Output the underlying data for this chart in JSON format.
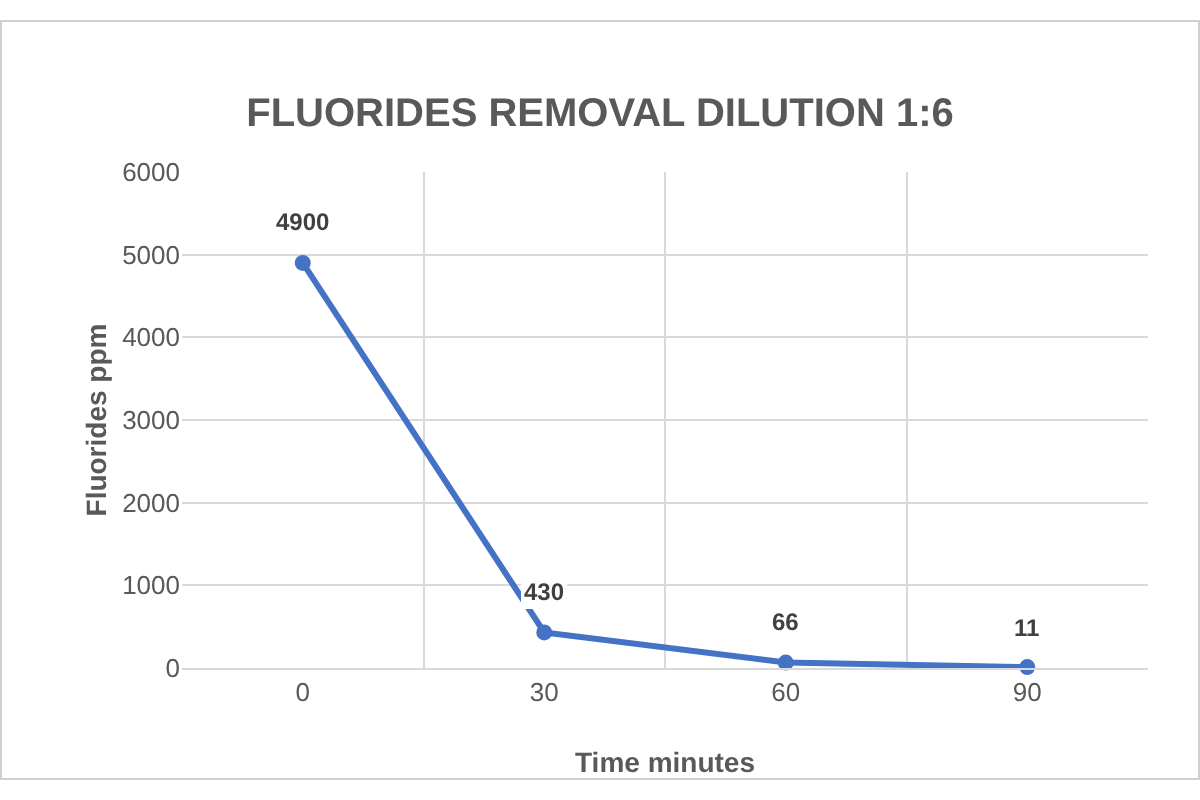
{
  "chart_data": {
    "type": "line",
    "title": "FLUORIDES REMOVAL DILUTION 1:6",
    "xlabel": "Time minutes",
    "ylabel": "Fluorides ppm",
    "categories": [
      "0",
      "30",
      "60",
      "90"
    ],
    "series": [
      {
        "color": "#4472c4",
        "values": [
          4900,
          430,
          66,
          11
        ]
      }
    ],
    "ylim": [
      0,
      6000
    ],
    "yticks": [
      0,
      1000,
      2000,
      3000,
      4000,
      5000,
      6000
    ],
    "grid": true,
    "data_labels": true,
    "marker": "circle",
    "line_style": "solid"
  }
}
